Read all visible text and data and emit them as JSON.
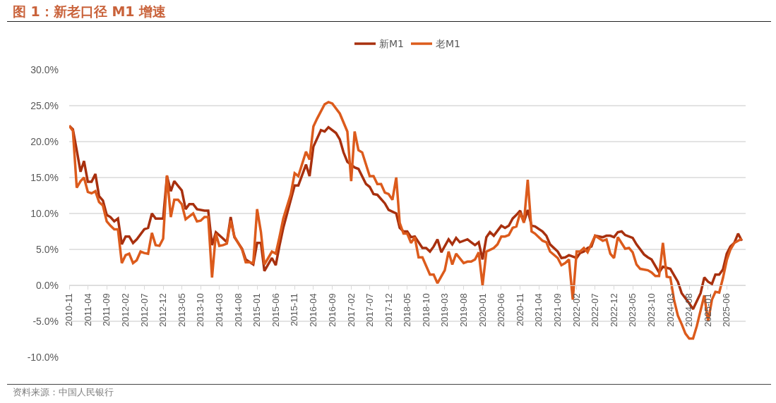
{
  "chart_data": {
    "type": "line",
    "title": "图 1：新老口径 M1 增速",
    "annotations": [
      "资料来源：中国人民银行"
    ],
    "xlim": [
      "2010-11",
      "2025-11"
    ],
    "xticks": [
      "2010-11",
      "2011-04",
      "2011-09",
      "2012-02",
      "2012-07",
      "2012-12",
      "2013-05",
      "2013-10",
      "2014-03",
      "2014-08",
      "2015-01",
      "2015-06",
      "2015-11",
      "2016-04",
      "2016-09",
      "2017-02",
      "2017-07",
      "2017-12",
      "2018-05",
      "2018-10",
      "2019-03",
      "2019-08",
      "2020-01",
      "2020-06",
      "2020-11",
      "2021-04",
      "2021-09",
      "2022-02",
      "2022-07",
      "2022-12",
      "2023-05",
      "2023-10",
      "2024-03",
      "2024-08",
      "2025-01",
      "2025-06"
    ],
    "ylim": [
      -10,
      30
    ],
    "yticks": [
      {
        "value": -10,
        "label": "-10.0%"
      },
      {
        "value": -5,
        "label": "-5.0%"
      },
      {
        "value": 0,
        "label": "0.0%"
      },
      {
        "value": 5,
        "label": "5.0%"
      },
      {
        "value": 10,
        "label": "10.0%"
      },
      {
        "value": 15,
        "label": "15.0%"
      },
      {
        "value": 20,
        "label": "20.0%"
      },
      {
        "value": 25,
        "label": "25.0%"
      },
      {
        "value": 30,
        "label": "30.0%"
      }
    ],
    "grid": "y",
    "legend": "top",
    "series": [
      {
        "name": "新M1",
        "color": "#a8300e",
        "x": [
          "2010-11",
          "2010-12",
          "2011-01",
          "2011-02",
          "2011-03",
          "2011-04",
          "2011-05",
          "2011-06",
          "2011-07",
          "2011-08",
          "2011-09",
          "2011-10",
          "2011-11",
          "2011-12",
          "2012-01",
          "2012-02",
          "2012-03",
          "2012-04",
          "2012-05",
          "2012-07",
          "2012-08",
          "2012-09",
          "2012-10",
          "2012-12",
          "2013-01",
          "2013-02",
          "2013-03",
          "2013-05",
          "2013-06",
          "2013-07",
          "2013-08",
          "2013-09",
          "2013-11",
          "2013-12",
          "2014-01",
          "2014-02",
          "2014-04",
          "2014-05",
          "2014-06",
          "2014-07",
          "2014-09",
          "2014-10",
          "2014-12",
          "2015-01",
          "2015-02",
          "2015-03",
          "2015-05",
          "2015-06",
          "2015-07",
          "2015-08",
          "2015-09",
          "2015-11",
          "2015-12",
          "2016-02",
          "2016-03",
          "2016-04",
          "2016-06",
          "2016-07",
          "2016-08",
          "2016-10",
          "2016-11",
          "2016-12",
          "2017-01",
          "2017-03",
          "2017-04",
          "2017-06",
          "2017-07",
          "2017-08",
          "2017-09",
          "2017-11",
          "2017-12",
          "2018-02",
          "2018-03",
          "2018-04",
          "2018-05",
          "2018-06",
          "2018-07",
          "2018-09",
          "2018-10",
          "2018-11",
          "2018-12",
          "2019-01",
          "2019-02",
          "2019-04",
          "2019-05",
          "2019-06",
          "2019-07",
          "2019-09",
          "2019-10",
          "2019-11",
          "2019-12",
          "2020-01",
          "2020-02",
          "2020-03",
          "2020-04",
          "2020-06",
          "2020-07",
          "2020-08",
          "2020-09",
          "2020-10",
          "2020-11",
          "2020-12",
          "2021-01",
          "2021-02",
          "2021-03",
          "2021-05",
          "2021-06",
          "2021-07",
          "2021-09",
          "2021-10",
          "2021-11",
          "2021-12",
          "2022-02",
          "2022-03",
          "2022-04",
          "2022-05",
          "2022-06",
          "2022-07",
          "2022-09",
          "2022-10",
          "2022-11",
          "2022-12",
          "2023-01",
          "2023-02",
          "2023-03",
          "2023-05",
          "2023-06",
          "2023-08",
          "2023-09",
          "2023-10",
          "2023-12",
          "2024-01",
          "2024-03",
          "2024-05",
          "2024-06",
          "2024-08",
          "2024-09",
          "2024-11",
          "2024-12",
          "2025-01",
          "2025-02",
          "2025-03",
          "2025-04",
          "2025-05",
          "2025-06",
          "2025-07",
          "2025-08",
          "2025-09",
          "2025-10"
        ],
        "values": [
          22.2,
          21.7,
          18.8,
          15.8,
          17.3,
          14.4,
          14.4,
          15.5,
          12.4,
          11.8,
          9.8,
          9.5,
          8.9,
          9.3,
          5.7,
          6.8,
          6.8,
          5.9,
          6.4,
          7.8,
          8.0,
          10.0,
          9.3,
          9.3,
          15.2,
          13.1,
          14.5,
          13.2,
          10.6,
          11.3,
          11.3,
          10.6,
          10.4,
          10.4,
          5.6,
          7.4,
          6.5,
          6.0,
          9.5,
          6.7,
          5.1,
          3.6,
          2.9,
          5.9,
          5.9,
          2.0,
          3.8,
          2.8,
          5.5,
          8.0,
          10.0,
          13.9,
          13.9,
          16.8,
          15.2,
          19.3,
          21.6,
          21.4,
          22.0,
          21.2,
          20.3,
          18.5,
          17.2,
          16.4,
          16.2,
          14.1,
          13.7,
          12.7,
          12.6,
          11.4,
          10.5,
          10.0,
          8.0,
          7.5,
          7.5,
          6.7,
          6.8,
          5.2,
          5.2,
          4.7,
          5.4,
          6.4,
          4.6,
          6.4,
          5.7,
          6.6,
          6.0,
          6.4,
          6.0,
          5.6,
          6.0,
          3.6,
          6.7,
          7.4,
          6.9,
          8.3,
          8.0,
          8.3,
          9.3,
          9.8,
          10.4,
          8.8,
          10.5,
          8.3,
          8.2,
          7.5,
          6.9,
          5.7,
          4.7,
          3.8,
          3.9,
          4.2,
          3.8,
          4.5,
          4.7,
          5.2,
          5.4,
          6.9,
          6.7,
          6.9,
          6.9,
          6.7,
          7.4,
          7.5,
          7.0,
          6.6,
          5.7,
          4.3,
          3.9,
          3.6,
          1.8,
          2.6,
          2.3,
          0.5,
          -1.1,
          -2.5,
          -3.3,
          -1.1,
          1.1,
          0.5,
          0.2,
          1.5,
          1.5,
          2.2,
          4.4,
          5.4,
          5.9,
          7.2,
          6.2
        ]
      },
      {
        "name": "老M1",
        "color": "#dc5b1c",
        "x": [
          "2010-11",
          "2010-12",
          "2011-01",
          "2011-02",
          "2011-03",
          "2011-04",
          "2011-05",
          "2011-06",
          "2011-07",
          "2011-08",
          "2011-09",
          "2011-10",
          "2011-11",
          "2011-12",
          "2012-01",
          "2012-02",
          "2012-03",
          "2012-04",
          "2012-05",
          "2012-06",
          "2012-07",
          "2012-08",
          "2012-09",
          "2012-10",
          "2012-11",
          "2012-12",
          "2013-01",
          "2013-02",
          "2013-03",
          "2013-04",
          "2013-05",
          "2013-06",
          "2013-07",
          "2013-08",
          "2013-09",
          "2013-10",
          "2013-11",
          "2013-12",
          "2014-01",
          "2014-02",
          "2014-03",
          "2014-04",
          "2014-05",
          "2014-06",
          "2014-07",
          "2014-09",
          "2014-10",
          "2014-11",
          "2014-12",
          "2015-01",
          "2015-02",
          "2015-03",
          "2015-04",
          "2015-05",
          "2015-06",
          "2015-07",
          "2015-08",
          "2015-10",
          "2015-11",
          "2015-12",
          "2016-02",
          "2016-03",
          "2016-04",
          "2016-05",
          "2016-07",
          "2016-08",
          "2016-09",
          "2016-11",
          "2017-01",
          "2017-02",
          "2017-03",
          "2017-04",
          "2017-05",
          "2017-07",
          "2017-08",
          "2017-09",
          "2017-10",
          "2017-11",
          "2017-12",
          "2018-01",
          "2018-02",
          "2018-03",
          "2018-04",
          "2018-05",
          "2018-06",
          "2018-07",
          "2018-08",
          "2018-09",
          "2018-11",
          "2018-12",
          "2019-01",
          "2019-03",
          "2019-04",
          "2019-05",
          "2019-06",
          "2019-08",
          "2019-09",
          "2019-10",
          "2019-11",
          "2019-12",
          "2020-01",
          "2020-02",
          "2020-04",
          "2020-05",
          "2020-06",
          "2020-07",
          "2020-08",
          "2020-09",
          "2020-10",
          "2020-11",
          "2020-12",
          "2021-01",
          "2021-02",
          "2021-03",
          "2021-05",
          "2021-06",
          "2021-07",
          "2021-09",
          "2021-10",
          "2021-11",
          "2021-12",
          "2022-01",
          "2022-02",
          "2022-03",
          "2022-04",
          "2022-05",
          "2022-07",
          "2022-09",
          "2022-10",
          "2022-11",
          "2022-12",
          "2023-01",
          "2023-03",
          "2023-04",
          "2023-05",
          "2023-06",
          "2023-07",
          "2023-09",
          "2023-10",
          "2023-11",
          "2023-12",
          "2024-01",
          "2024-02",
          "2024-03",
          "2024-04",
          "2024-05",
          "2024-06",
          "2024-07",
          "2024-08",
          "2024-09",
          "2024-10",
          "2024-12",
          "2025-01",
          "2025-02",
          "2025-03",
          "2025-04",
          "2025-05",
          "2025-06",
          "2025-07",
          "2025-08",
          "2025-09",
          "2025-10"
        ],
        "values": [
          22.2,
          21.5,
          13.6,
          14.5,
          15.0,
          13.0,
          12.8,
          13.1,
          11.6,
          11.1,
          8.9,
          8.3,
          7.8,
          7.8,
          3.1,
          4.2,
          4.4,
          3.1,
          3.5,
          4.7,
          4.5,
          4.4,
          7.3,
          5.6,
          5.5,
          6.5,
          15.3,
          9.5,
          11.9,
          11.9,
          11.3,
          9.2,
          9.6,
          10.0,
          8.9,
          9.0,
          9.5,
          9.5,
          1.1,
          7.2,
          5.5,
          5.6,
          5.8,
          9.0,
          6.8,
          5.0,
          3.2,
          3.2,
          3.1,
          10.6,
          7.4,
          2.9,
          3.8,
          4.7,
          4.4,
          6.7,
          9.3,
          12.7,
          15.6,
          15.2,
          18.6,
          17.5,
          22.1,
          23.2,
          25.2,
          25.5,
          25.3,
          23.9,
          21.4,
          14.5,
          21.4,
          18.8,
          18.5,
          15.2,
          15.2,
          14.1,
          14.1,
          12.9,
          12.7,
          11.9,
          15.0,
          8.7,
          7.2,
          7.2,
          5.9,
          6.7,
          3.9,
          3.9,
          1.5,
          1.5,
          0.3,
          2.1,
          4.7,
          2.9,
          4.4,
          3.1,
          3.3,
          3.3,
          3.6,
          4.6,
          0.0,
          4.7,
          5.2,
          5.7,
          6.8,
          6.8,
          7.0,
          8.0,
          8.2,
          10.1,
          8.7,
          14.7,
          7.5,
          7.2,
          6.2,
          6.0,
          4.7,
          3.8,
          2.8,
          3.1,
          3.6,
          -2.0,
          4.7,
          4.7,
          5.2,
          4.6,
          6.9,
          6.2,
          6.4,
          4.4,
          3.8,
          6.7,
          5.1,
          5.2,
          4.6,
          2.9,
          2.3,
          2.1,
          1.8,
          1.3,
          1.3,
          5.9,
          1.2,
          1.1,
          -2.1,
          -4.2,
          -5.4,
          -6.7,
          -7.4,
          -7.4,
          -5.7,
          -1.4,
          -5.0,
          -2.0,
          -0.9,
          -1.0,
          1.0,
          3.5,
          5.0,
          5.9,
          6.2,
          6.5
        ]
      }
    ]
  }
}
